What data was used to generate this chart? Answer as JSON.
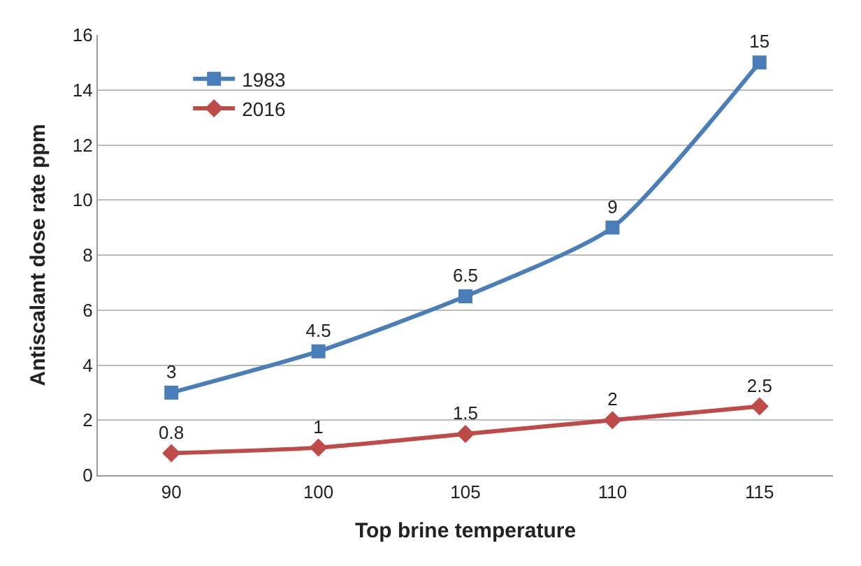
{
  "chart_data": {
    "type": "line",
    "xlabel": "Top brine temperature",
    "ylabel": "Antiscalant dose rate ppm",
    "categories": [
      "90",
      "100",
      "105",
      "110",
      "115"
    ],
    "series": [
      {
        "name": "1983",
        "color": "#4a7ebb",
        "values": [
          3,
          4.5,
          6.5,
          9,
          15
        ],
        "marker": "square"
      },
      {
        "name": "2016",
        "color": "#be4b48",
        "values": [
          0.8,
          1,
          1.5,
          2,
          2.5
        ],
        "marker": "diamond"
      }
    ],
    "ylim": [
      0,
      16
    ],
    "yticks": [
      0,
      2,
      4,
      6,
      8,
      10,
      12,
      14,
      16
    ],
    "grid": "y",
    "legend": "top left",
    "data_labels": true,
    "line_style": "solid"
  }
}
